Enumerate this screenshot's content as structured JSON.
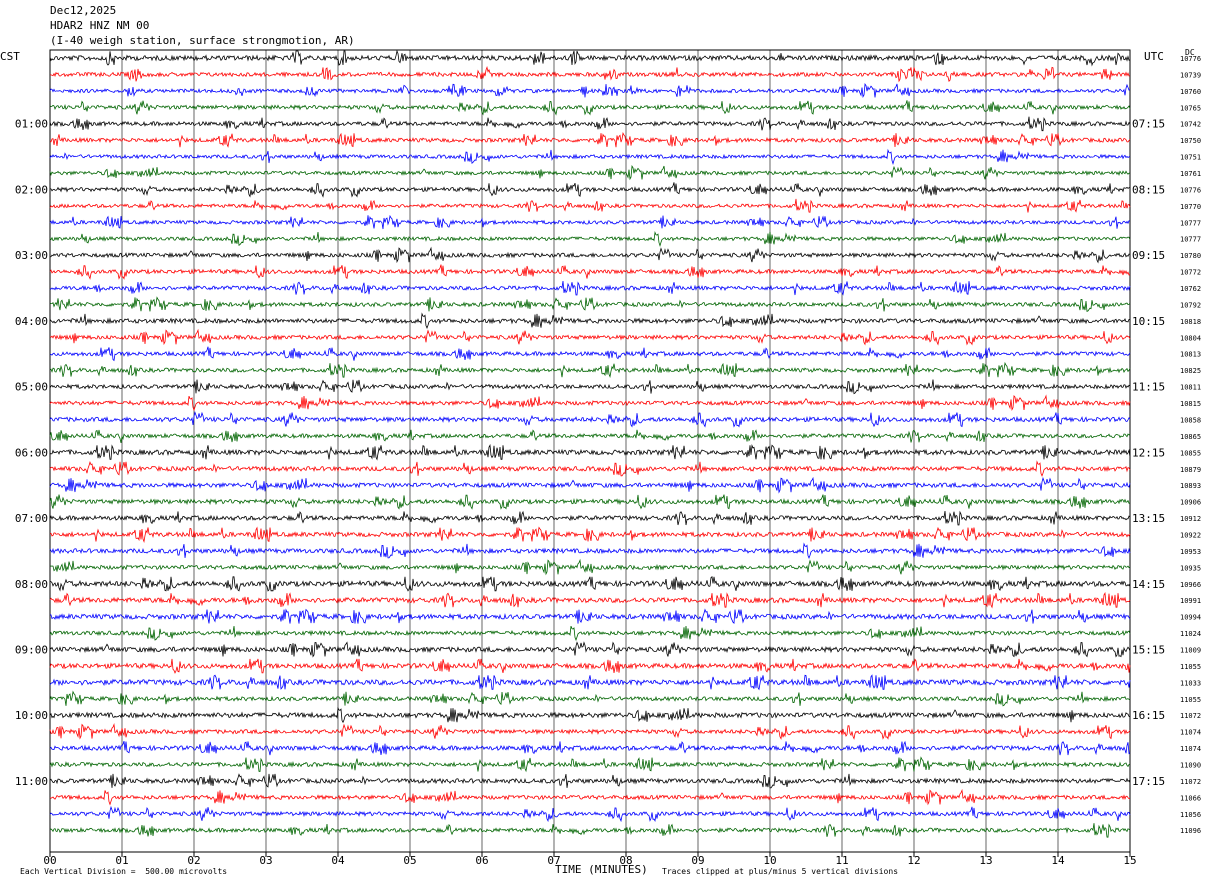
{
  "header": {
    "date": "Dec12,2025",
    "station": "HDAR2 HNZ NM 00",
    "description": "(I-40 weigh station, surface strongmotion, AR)"
  },
  "left_axis_label": "CST",
  "right_axis_label": "UTC",
  "dc_label": "DC",
  "footer": {
    "scale_note": "Each Vertical Division =  500.00 microvolts",
    "xlabel": "TIME (MINUTES)",
    "clip_note": "Traces clipped at plus/minus 5 vertical divisions"
  },
  "colors": {
    "trace_cycle": [
      "#000000",
      "#ff0000",
      "#0000ff",
      "#006400"
    ],
    "grid": "#000000",
    "background": "#ffffff"
  },
  "chart_data": {
    "type": "line",
    "title": "HDAR2 HNZ NM 00",
    "xlabel": "TIME (MINUTES)",
    "x_ticks": [
      "00",
      "01",
      "02",
      "03",
      "04",
      "05",
      "06",
      "07",
      "08",
      "09",
      "10",
      "11",
      "12",
      "13",
      "14",
      "15"
    ],
    "xlim": [
      0,
      15
    ],
    "grid": true,
    "hour_labels_cst": [
      {
        "row": 4,
        "label": "01:00"
      },
      {
        "row": 8,
        "label": "02:00"
      },
      {
        "row": 12,
        "label": "03:00"
      },
      {
        "row": 16,
        "label": "04:00"
      },
      {
        "row": 20,
        "label": "05:00"
      },
      {
        "row": 24,
        "label": "06:00"
      },
      {
        "row": 28,
        "label": "07:00"
      },
      {
        "row": 32,
        "label": "08:00"
      },
      {
        "row": 36,
        "label": "09:00"
      },
      {
        "row": 40,
        "label": "10:00"
      },
      {
        "row": 44,
        "label": "11:00"
      }
    ],
    "hour_labels_utc": [
      {
        "row": 4,
        "label": "07:15"
      },
      {
        "row": 8,
        "label": "08:15"
      },
      {
        "row": 12,
        "label": "09:15"
      },
      {
        "row": 16,
        "label": "10:15"
      },
      {
        "row": 20,
        "label": "11:15"
      },
      {
        "row": 24,
        "label": "12:15"
      },
      {
        "row": 28,
        "label": "13:15"
      },
      {
        "row": 32,
        "label": "14:15"
      },
      {
        "row": 36,
        "label": "15:15"
      },
      {
        "row": 40,
        "label": "16:15"
      },
      {
        "row": 44,
        "label": "17:15"
      }
    ],
    "dc_offsets": [
      "10776",
      "10739",
      "10760",
      "10765",
      "10742",
      "10750",
      "10751",
      "10761",
      "10776",
      "10770",
      "10777",
      "10777",
      "10780",
      "10772",
      "10762",
      "10792",
      "10818",
      "10804",
      "10813",
      "10825",
      "10811",
      "10815",
      "10858",
      "10865",
      "10855",
      "10879",
      "10893",
      "10906",
      "10912",
      "10922",
      "10953",
      "10935",
      "10966",
      "10991",
      "10994",
      "11024",
      "11009",
      "11055",
      "11033",
      "11055",
      "11072",
      "11074",
      "11074",
      "11090",
      "11072",
      "11066",
      "11056",
      "11096"
    ],
    "trace_amplitudes": [
      0.6,
      0.5,
      0.45,
      0.5,
      0.5,
      0.5,
      0.45,
      0.45,
      0.5,
      0.45,
      0.45,
      0.45,
      0.5,
      0.5,
      0.5,
      0.5,
      0.55,
      0.5,
      0.5,
      0.5,
      0.5,
      0.5,
      0.55,
      0.5,
      0.6,
      0.55,
      0.55,
      0.55,
      0.55,
      0.55,
      0.55,
      0.5,
      0.65,
      0.6,
      0.6,
      0.5,
      0.6,
      0.6,
      0.65,
      0.5,
      0.6,
      0.5,
      0.55,
      0.5,
      0.55,
      0.5,
      0.5,
      0.5
    ]
  }
}
